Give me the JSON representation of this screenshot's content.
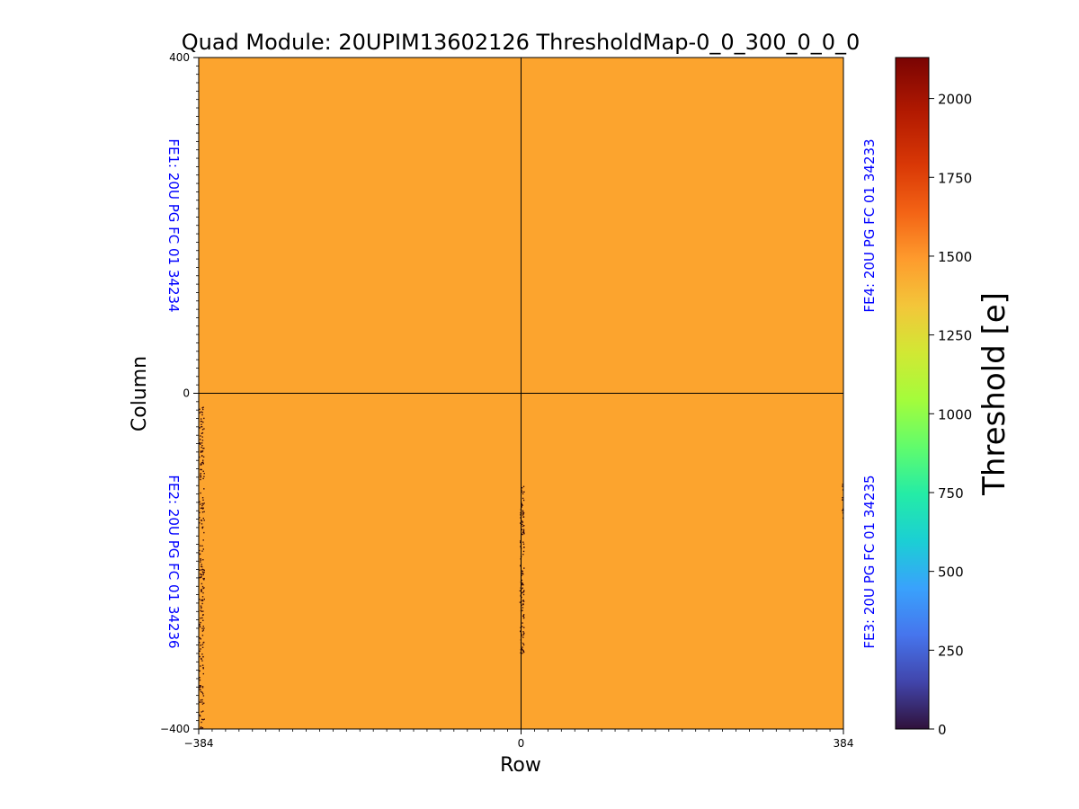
{
  "chart_data": {
    "type": "heatmap",
    "title": "Quad Module: 20UPIM13602126 ThresholdMap-0_0_300_0_0_0",
    "xlabel": "Row",
    "ylabel": "Column",
    "xlim": [
      -384,
      384
    ],
    "ylim": [
      -400,
      400
    ],
    "x_tick_labels": [
      "−384",
      "0",
      "384"
    ],
    "x_tick_values": [
      -384,
      0,
      384
    ],
    "y_tick_labels": [
      "−400",
      "0",
      "400"
    ],
    "y_tick_values": [
      -400,
      0,
      400
    ],
    "uniform_value": 1510,
    "uniform_color": "#fca42e",
    "outlier_color": "#3a0c0c",
    "chip_labels": [
      {
        "text": "FE1: 20U PG FC 01 34234",
        "quadrant": "top-left"
      },
      {
        "text": "FE2: 20U PG FC 01 34236",
        "quadrant": "bottom-left"
      },
      {
        "text": "FE3: 20U PG FC 01 34235",
        "quadrant": "bottom-right"
      },
      {
        "text": "FE4: 20U PG FC 01 34233",
        "quadrant": "top-right"
      }
    ],
    "chip_label_color": "#0000ff",
    "outlier_regions": [
      {
        "x_range": [
          -384,
          -378
        ],
        "y_range": [
          -400,
          -15
        ],
        "count": 220
      },
      {
        "x_range": [
          -2,
          3
        ],
        "y_range": [
          -310,
          -110
        ],
        "count": 130
      },
      {
        "x_range": [
          382,
          384
        ],
        "y_range": [
          -150,
          -100
        ],
        "count": 10
      }
    ],
    "colorbar": {
      "label": "Threshold [e]",
      "range": [
        0,
        2130
      ],
      "tick_values": [
        0,
        250,
        500,
        750,
        1000,
        1250,
        1500,
        1750,
        2000
      ],
      "tick_labels": [
        "0",
        "250",
        "500",
        "750",
        "1000",
        "1250",
        "1500",
        "1750",
        "2000"
      ],
      "colormap": "turbo"
    }
  }
}
